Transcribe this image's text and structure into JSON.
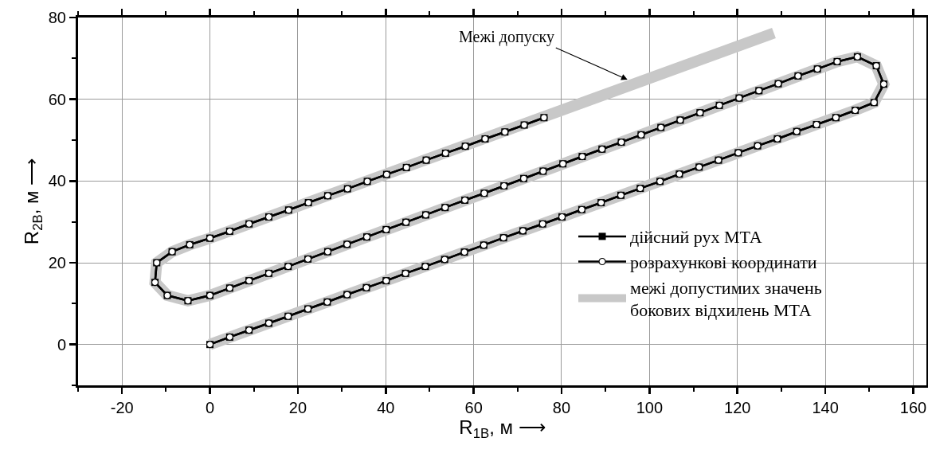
{
  "chart_data": {
    "type": "line",
    "xlabel": "R$_{1B}$, м ⟶",
    "ylabel": "R$_{2B}$, м ⟶",
    "x": [
      0,
      4.5,
      8.9,
      13.4,
      17.8,
      22.3,
      26.7,
      31.2,
      35.6,
      40.1,
      44.5,
      49,
      53.4,
      57.9,
      62.3,
      66.8,
      71.2,
      75.7,
      80.1,
      84.6,
      89,
      93.5,
      97.9,
      102.4,
      106.8,
      111.3,
      115.7,
      120.2,
      124.6,
      129.1,
      133.5,
      138,
      142.4,
      146.8,
      151.1,
      153.3,
      151.6,
      147.3,
      142.7,
      138.2,
      133.8,
      129.3,
      124.9,
      120.4,
      115.9,
      111.5,
      107,
      102.6,
      98.1,
      93.6,
      89.2,
      84.7,
      80.3,
      75.8,
      71.4,
      66.9,
      62.4,
      58,
      53.5,
      49.1,
      44.6,
      40.1,
      35.7,
      31.2,
      26.8,
      22.3,
      17.8,
      13.4,
      8.9,
      4.5,
      0,
      -5,
      -9.7,
      -12.5,
      -12.1,
      -8.6,
      -4.6,
      0,
      4.5,
      8.9,
      13.4,
      17.9,
      22.4,
      26.8,
      31.3,
      35.8,
      40.2,
      44.7,
      49.2,
      53.6,
      58.1,
      62.6,
      67.1,
      71.5,
      76
    ],
    "series": [
      {
        "name": "межі допустимих значень\nбокових відхилень МТА",
        "color": "#c8c8c8",
        "marker": "none",
        "x": [
          0,
          146.8,
          151.1,
          153.3,
          151.6,
          147.3,
          142.7,
          0,
          -5,
          -9.7,
          -12.5,
          -12.1,
          -8.6,
          -4.6,
          0,
          128.3
        ],
        "values": [
          0,
          57.3,
          59.2,
          63.7,
          68.2,
          70.4,
          69.2,
          12,
          10.7,
          12,
          15.2,
          20,
          22.7,
          24.4,
          26,
          76.2
        ]
      },
      {
        "name": "дійсний рух МТА",
        "color": "#000000",
        "marker": "square",
        "values": [
          0,
          1.8,
          3.5,
          5.2,
          6.9,
          8.7,
          10.4,
          12.2,
          13.9,
          15.6,
          17.4,
          19.1,
          20.8,
          22.6,
          24.3,
          26.1,
          27.8,
          29.5,
          31.2,
          33,
          34.7,
          36.5,
          38.2,
          39.9,
          41.7,
          43.4,
          45.1,
          46.9,
          48.6,
          50.3,
          52.1,
          53.8,
          55.5,
          57.3,
          59.2,
          63.7,
          68.2,
          70.4,
          69.2,
          67.4,
          65.7,
          63.8,
          62.1,
          60.3,
          58.5,
          56.7,
          54.9,
          53.1,
          51.3,
          49.5,
          47.8,
          46,
          44.2,
          42.4,
          40.6,
          38.8,
          37,
          35.3,
          33.5,
          31.7,
          29.9,
          28.1,
          26.3,
          24.5,
          22.7,
          20.9,
          19.1,
          17.4,
          15.6,
          13.8,
          12,
          10.7,
          12,
          15.2,
          20,
          22.7,
          24.4,
          26,
          27.7,
          29.5,
          31.2,
          32.9,
          34.7,
          36.4,
          38.1,
          39.9,
          41.6,
          43.3,
          45.1,
          46.8,
          48.5,
          50.3,
          52,
          53.7,
          55.5
        ]
      },
      {
        "name": "розрахункові координати",
        "color": "#000000",
        "marker": "circle",
        "values": [
          0,
          1.8,
          3.5,
          5.2,
          6.9,
          8.7,
          10.4,
          12.2,
          13.9,
          15.6,
          17.4,
          19.1,
          20.8,
          22.6,
          24.3,
          26.1,
          27.8,
          29.5,
          31.2,
          33,
          34.7,
          36.5,
          38.2,
          39.9,
          41.7,
          43.4,
          45.1,
          46.9,
          48.6,
          50.3,
          52.1,
          53.8,
          55.5,
          57.3,
          59.2,
          63.7,
          68.2,
          70.4,
          69.2,
          67.4,
          65.7,
          63.8,
          62.1,
          60.3,
          58.5,
          56.7,
          54.9,
          53.1,
          51.3,
          49.5,
          47.8,
          46,
          44.2,
          42.4,
          40.6,
          38.8,
          37,
          35.3,
          33.5,
          31.7,
          29.9,
          28.1,
          26.3,
          24.5,
          22.7,
          20.9,
          19.1,
          17.4,
          15.6,
          13.8,
          12,
          10.7,
          12,
          15.2,
          20,
          22.7,
          24.4,
          26,
          27.7,
          29.5,
          31.2,
          32.9,
          34.7,
          36.4,
          38.1,
          39.9,
          41.6,
          43.3,
          45.1,
          46.8,
          48.5,
          50.3,
          52,
          53.7,
          55.5
        ]
      }
    ],
    "annotations": [
      {
        "text": "Межі допуску",
        "x": 95,
        "y": 64.8
      }
    ],
    "xlim": [
      -30,
      163
    ],
    "xticks": [
      {
        "value": -30,
        "label": null
      },
      -20,
      {
        "value": -10,
        "label": null
      },
      0,
      {
        "value": 10,
        "label": null
      },
      20,
      {
        "value": 30,
        "label": null
      },
      40,
      {
        "value": 50,
        "label": null
      },
      60,
      {
        "value": 70,
        "label": null
      },
      80,
      {
        "value": 90,
        "label": null
      },
      100,
      {
        "value": 110,
        "label": null
      },
      120,
      {
        "value": 130,
        "label": null
      },
      140,
      {
        "value": 150,
        "label": null
      },
      160
    ],
    "ylim": [
      -10,
      80
    ],
    "yticks": [
      {
        "value": -10,
        "label": null
      },
      0,
      {
        "value": 10,
        "label": null
      },
      20,
      {
        "value": 30,
        "label": null
      },
      40,
      {
        "value": 50,
        "label": null
      },
      60,
      {
        "value": 70,
        "label": null
      },
      80
    ],
    "grid": true,
    "legend": "right",
    "line_style": "solid"
  }
}
